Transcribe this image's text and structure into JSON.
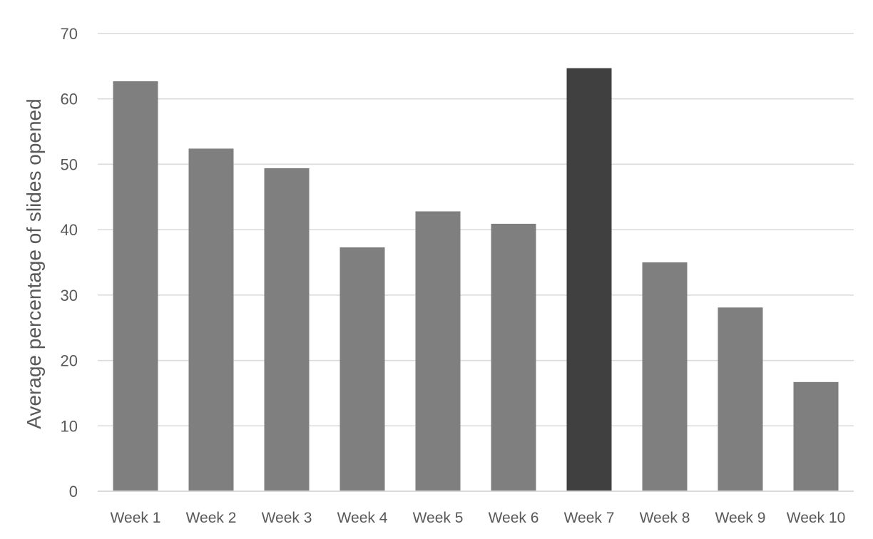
{
  "chart_data": {
    "type": "bar",
    "title": "",
    "xlabel": "",
    "ylabel": "Average percentage of slides opened",
    "categories": [
      "Week 1",
      "Week 2",
      "Week 3",
      "Week 4",
      "Week 5",
      "Week 6",
      "Week 7",
      "Week 8",
      "Week 9",
      "Week 10"
    ],
    "values": [
      62.7,
      52.4,
      49.4,
      37.3,
      42.8,
      40.9,
      64.7,
      35.0,
      28.1,
      16.7
    ],
    "ylim": [
      0,
      70
    ],
    "yticks": [
      0,
      10,
      20,
      30,
      40,
      50,
      60,
      70
    ],
    "grid": true,
    "legend": "none",
    "colors": {
      "bar": "#7f7f7f",
      "highlight_bar": "#404040",
      "grid": "#d9d9d9",
      "text": "#595959"
    },
    "highlight_index": 6
  }
}
